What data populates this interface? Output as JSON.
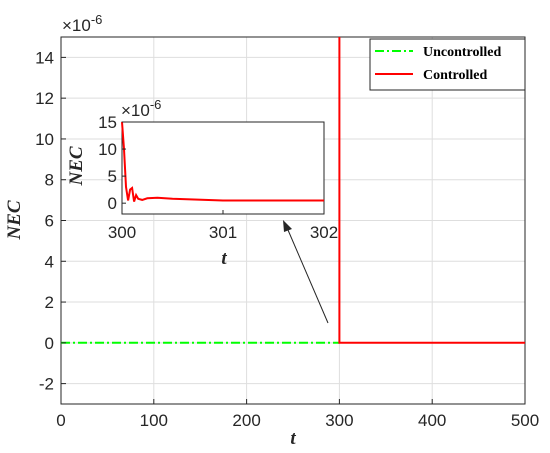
{
  "chart_data": {
    "type": "line",
    "xlabel": "t",
    "ylabel": "NEC",
    "xlim": [
      0,
      500
    ],
    "ylim": [
      -3,
      15
    ],
    "y_exponent": "×10^-6",
    "xticks": [
      0,
      100,
      200,
      300,
      400,
      500
    ],
    "yticks": [
      -2,
      0,
      2,
      4,
      6,
      8,
      10,
      12,
      14
    ],
    "grid": true,
    "legend_position": "top-right",
    "series": [
      {
        "name": "Uncontrolled",
        "color": "#00ff00",
        "style": "dash-dot",
        "x": [
          0,
          300
        ],
        "y": [
          0,
          0
        ]
      },
      {
        "name": "Controlled",
        "color": "#ff0000",
        "style": "solid",
        "x": [
          300,
          300,
          302,
          500
        ],
        "y": [
          15,
          0,
          0,
          0
        ]
      }
    ],
    "inset": {
      "xlabel": "t",
      "ylabel": "NEC",
      "xlim": [
        300,
        302
      ],
      "ylim": [
        -2,
        15
      ],
      "y_exponent": "×10^-6",
      "xticks": [
        300,
        301,
        302
      ],
      "yticks": [
        0,
        5,
        10,
        15
      ],
      "series": {
        "name": "Controlled",
        "color": "#ff0000",
        "x": [
          300,
          300.02,
          300.04,
          300.06,
          300.08,
          300.1,
          300.12,
          300.14,
          300.16,
          300.2,
          300.25,
          300.35,
          300.5,
          301,
          302
        ],
        "y": [
          15,
          10,
          3,
          0.5,
          2.5,
          2.8,
          0.3,
          1.5,
          0.8,
          0.6,
          0.9,
          1.0,
          0.8,
          0.5,
          0.5
        ]
      }
    }
  }
}
